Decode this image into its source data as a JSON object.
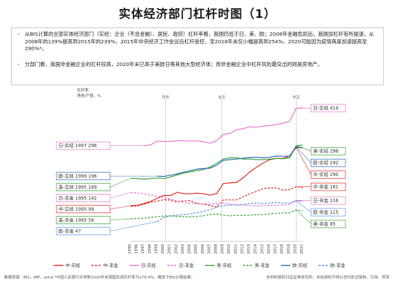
{
  "page": {
    "title": "实体经济部门杠杆时图（1）",
    "bullets": [
      {
        "marker": "–",
        "text": "从BIS计算的全部实体经济部门（实经：企业（不含金融）、居民、政府）杠杆率看，我国仍低于日、美、欧；2008年金融危机后，我国加杠杆有所提速，从2008年的139%提高到2015年的239%，2015年中央经济工作会议后杠杆受控，至2018年末仅小幅提高到254%，2020可能因为疫情再度加速提高至290%*。"
      },
      {
        "marker": "–",
        "text": "分部门看，我国非金融企业的杠杆较高，2020年末已高于美欧日等其他大型经济体；而非金融企业中杠杆风险最突出的则是房地产。"
      }
    ],
    "footer_source": "数据来源：BIS，IMF，wind *中国人民银行孙学斯2020年末我国宏观杠杆率为279.4%，略低于BIS计算结果。",
    "footer_right": "本材料版权归证证券研究所，未经授权不得以任何形式复制、引用、转发"
  },
  "chart_meta": {
    "ylabel_line1": "杠杆率：",
    "ylabel_line2": "债务/产值，%",
    "event_labels": [
      "网络",
      "金危",
      "新冠"
    ],
    "colors": {
      "中-实经": "#e0201b",
      "中-非金": "#e0201b",
      "日-实经": "#e86fc8",
      "日-非金": "#e86fc8",
      "美-实经": "#2ca02c",
      "美-非金": "#2ca02c",
      "欧-实经": "#2563b8",
      "欧-非金": "#4a90e2"
    }
  },
  "chart_data": {
    "type": "line",
    "xlabel": "",
    "ylabel": "杠杆率：债务/产值，%",
    "xlim": [
      1995,
      2021
    ],
    "ylim": [
      0,
      440
    ],
    "x_ticks": [
      "1995",
      "1996",
      "1997",
      "1998",
      "1999",
      "2000",
      "2001",
      "2002",
      "2003",
      "2004",
      "2005",
      "2006",
      "2007",
      "2008",
      "2009",
      "2010",
      "2011",
      "2012",
      "2013",
      "2014",
      "2015",
      "2016",
      "2017",
      "2018",
      "2019",
      "2020",
      "2021"
    ],
    "events": [
      {
        "label": "网络",
        "x": 2000.25
      },
      {
        "label": "金危",
        "x": 2008.75
      },
      {
        "label": "新冠",
        "x": 2020.0
      }
    ],
    "series": [
      {
        "name": "中-实经",
        "dash": "solid",
        "x": [
          1995,
          1996,
          1997,
          1998,
          1999,
          2000,
          2001,
          2002,
          2003,
          2004,
          2005,
          2006,
          2007,
          2008,
          2009,
          2010,
          2011,
          2012,
          2013,
          2014,
          2015,
          2016,
          2017,
          2018,
          2019,
          2020,
          2021
        ],
        "values": [
          99,
          100,
          106,
          113,
          123,
          133,
          132,
          143,
          138,
          138,
          140,
          138,
          134,
          139,
          172,
          174,
          175,
          191,
          210,
          225,
          239,
          250,
          254,
          254,
          262,
          290,
          289
        ]
      },
      {
        "name": "中-非金",
        "dash": "dash",
        "x": [
          1995,
          1996,
          1997,
          1998,
          1999,
          2000,
          2001,
          2002,
          2003,
          2004,
          2005,
          2006,
          2007,
          2008,
          2009,
          2010,
          2011,
          2012,
          2013,
          2014,
          2015,
          2016,
          2017,
          2018,
          2019,
          2020,
          2021
        ],
        "values": [
          97,
          98,
          104,
          110,
          114,
          119,
          117,
          111,
          115,
          116,
          106,
          104,
          99,
          95,
          118,
          118,
          118,
          128,
          138,
          146,
          155,
          157,
          157,
          150,
          152,
          161,
          158
        ]
      },
      {
        "name": "日-实经",
        "dash": "solid",
        "x": [
          1997,
          1998,
          1999,
          2000,
          2001,
          2002,
          2003,
          2004,
          2005,
          2006,
          2007,
          2008,
          2009,
          2010,
          2011,
          2012,
          2013,
          2014,
          2015,
          2016,
          2017,
          2018,
          2019,
          2020,
          2021
        ],
        "values": [
          296,
          298,
          311,
          310,
          310,
          312,
          312,
          311,
          312,
          309,
          304,
          313,
          333,
          336,
          348,
          352,
          358,
          356,
          360,
          362,
          365,
          370,
          376,
          419,
          420
        ]
      },
      {
        "name": "日-非金",
        "dash": "dash",
        "x": [
          1995,
          1996,
          1997,
          1998,
          1999,
          2000,
          2001,
          2002,
          2003,
          2004,
          2005,
          2006,
          2007,
          2008,
          2009,
          2010,
          2011,
          2012,
          2013,
          2014,
          2015,
          2016,
          2017,
          2018,
          2019,
          2020,
          2021
        ],
        "values": [
          142,
          141,
          138,
          134,
          130,
          126,
          121,
          115,
          110,
          108,
          105,
          105,
          104,
          106,
          108,
          104,
          102,
          101,
          100,
          98,
          99,
          100,
          101,
          102,
          103,
          116,
          116
        ]
      },
      {
        "name": "美-实经",
        "dash": "solid",
        "x": [
          1995,
          1996,
          1997,
          1998,
          1999,
          2000,
          2001,
          2002,
          2003,
          2004,
          2005,
          2006,
          2007,
          2008,
          2009,
          2010,
          2011,
          2012,
          2013,
          2014,
          2015,
          2016,
          2017,
          2018,
          2019,
          2020,
          2021
        ],
        "values": [
          189,
          188,
          186,
          188,
          190,
          188,
          193,
          200,
          206,
          210,
          214,
          218,
          226,
          238,
          252,
          256,
          256,
          252,
          252,
          250,
          250,
          252,
          254,
          253,
          256,
          296,
          298
        ]
      },
      {
        "name": "美-非金",
        "dash": "dash",
        "x": [
          1995,
          1996,
          1997,
          1998,
          1999,
          2000,
          2001,
          2002,
          2003,
          2004,
          2005,
          2006,
          2007,
          2008,
          2009,
          2010,
          2011,
          2012,
          2013,
          2014,
          2015,
          2016,
          2017,
          2018,
          2019,
          2020,
          2021
        ],
        "values": [
          56,
          57,
          58,
          61,
          63,
          65,
          66,
          64,
          63,
          63,
          64,
          66,
          70,
          72,
          68,
          66,
          67,
          67,
          68,
          69,
          70,
          72,
          74,
          75,
          76,
          85,
          82
        ]
      },
      {
        "name": "欧-实经",
        "dash": "solid",
        "x": [
          1999,
          2000,
          2001,
          2002,
          2003,
          2004,
          2005,
          2006,
          2007,
          2008,
          2009,
          2010,
          2011,
          2012,
          2013,
          2014,
          2015,
          2016,
          2017,
          2018,
          2019,
          2020,
          2021
        ],
        "values": [
          196,
          195,
          199,
          203,
          209,
          214,
          219,
          221,
          222,
          232,
          248,
          250,
          252,
          255,
          257,
          258,
          256,
          258,
          262,
          261,
          262,
          292,
          290
        ]
      },
      {
        "name": "欧-非金",
        "dash": "dash",
        "x": [
          1999,
          2000,
          2001,
          2002,
          2003,
          2004,
          2005,
          2006,
          2007,
          2008,
          2009,
          2010,
          2011,
          2012,
          2013,
          2014,
          2015,
          2016,
          2017,
          2018,
          2019,
          2020,
          2021
        ],
        "values": [
          47,
          60,
          65,
          68,
          70,
          72,
          76,
          80,
          86,
          94,
          100,
          101,
          101,
          103,
          106,
          108,
          106,
          108,
          110,
          108,
          108,
          115,
          113
        ]
      }
    ],
    "left_labels": [
      {
        "series": "日-实经",
        "text": "日-实经 1997 296",
        "value": 296
      },
      {
        "series": "欧-实经",
        "text": "欧-实经 1999 196",
        "value": 196
      },
      {
        "series": "美-实经",
        "text": "美-实经 1995 189",
        "value": 189
      },
      {
        "series": "日-非金",
        "text": "日-非金 1995 142",
        "value": 142
      },
      {
        "series": "中-实经",
        "text": "中-实经 1995 99",
        "value": 99
      },
      {
        "series": "美-非金",
        "text": "美-非金 1995 56",
        "value": 56
      },
      {
        "series": "欧-非金",
        "text": "欧-非金 47",
        "value": 47
      }
    ],
    "right_labels": [
      {
        "series": "日-实经",
        "text": "日-实经 419",
        "value": 419
      },
      {
        "series": "美-实经",
        "text": "美-实经 296",
        "value": 296
      },
      {
        "series": "欧-实经",
        "text": "欧-实经 292",
        "value": 292
      },
      {
        "series": "中-实经",
        "text": "中-实经 290",
        "value": 290
      },
      {
        "series": "中-非金",
        "text": "中-非金 161",
        "value": 161
      },
      {
        "series": "日-非金",
        "text": "日-非金 116",
        "value": 116
      },
      {
        "series": "欧-非金",
        "text": "欧-非金 115",
        "value": 115
      },
      {
        "series": "美-非金",
        "text": "美-非金 85",
        "value": 85
      }
    ],
    "legend": [
      "中-实经",
      "中-非金",
      "日-实经",
      "日-非金",
      "美-实经",
      "美-非金",
      "欧-实经",
      "欧-非金"
    ],
    "legend_position": "bottom",
    "grid": false
  }
}
